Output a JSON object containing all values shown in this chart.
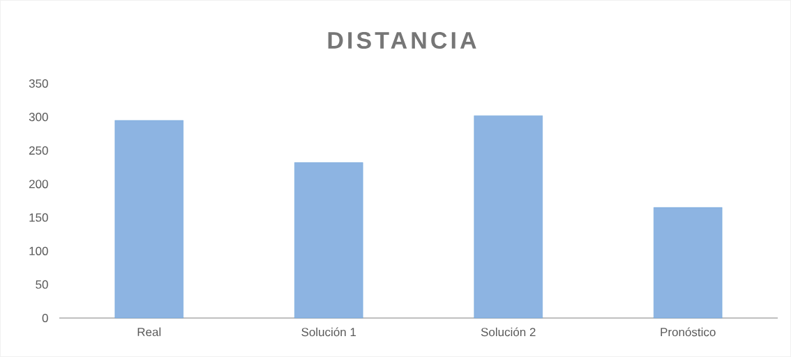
{
  "chart_data": {
    "type": "bar",
    "title": "DISTANCIA",
    "categories": [
      "Real",
      "Solución 1",
      "Solución 2",
      "Pronóstico"
    ],
    "values": [
      295,
      232,
      302,
      165
    ],
    "color": "#8db4e2",
    "ylim": [
      0,
      350
    ],
    "yticks": [
      0,
      50,
      100,
      150,
      200,
      250,
      300,
      350
    ]
  }
}
